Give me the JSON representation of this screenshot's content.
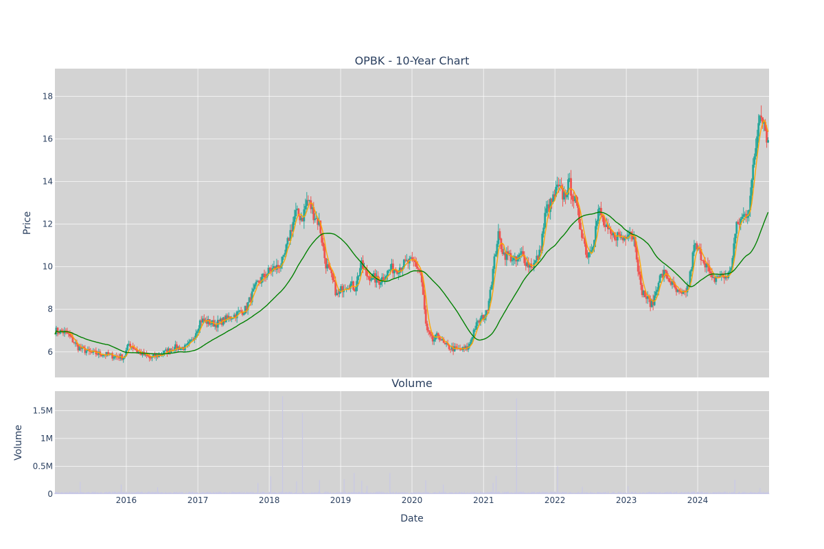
{
  "chart_data": [
    {
      "type": "candlestick",
      "title": "OPBK - 10-Year Chart",
      "xlabel": "",
      "ylabel": "Price",
      "x_range": [
        "2015-01-01",
        "2024-12-31"
      ],
      "ylim": [
        4.8,
        19.3
      ],
      "y_ticks": [
        6,
        8,
        10,
        12,
        14,
        16,
        18
      ],
      "x_tick_labels": [
        "2016",
        "2017",
        "2018",
        "2019",
        "2020",
        "2021",
        "2022",
        "2023",
        "2024"
      ],
      "grid": true,
      "background": "#d3d3d3",
      "increasing_color": "#26a69a",
      "decreasing_color": "#ef5350",
      "close_approx": {
        "dates": [
          "2015-01-01",
          "2015-03-01",
          "2015-05-01",
          "2015-07-01",
          "2015-09-01",
          "2015-11-01",
          "2015-12-20",
          "2016-01-15",
          "2016-03-01",
          "2016-05-01",
          "2016-07-01",
          "2016-09-01",
          "2016-11-01",
          "2016-12-01",
          "2017-01-15",
          "2017-04-01",
          "2017-07-01",
          "2017-09-01",
          "2017-11-01",
          "2018-01-01",
          "2018-02-15",
          "2018-03-15",
          "2018-04-15",
          "2018-05-15",
          "2018-06-20",
          "2018-07-15",
          "2018-08-15",
          "2018-09-15",
          "2018-10-15",
          "2018-11-15",
          "2018-12-15",
          "2019-01-15",
          "2019-02-15",
          "2019-03-15",
          "2019-04-15",
          "2019-05-15",
          "2019-06-15",
          "2019-07-15",
          "2019-08-15",
          "2019-09-15",
          "2019-10-15",
          "2019-11-15",
          "2019-12-15",
          "2020-01-15",
          "2020-02-15",
          "2020-03-15",
          "2020-04-15",
          "2020-05-15",
          "2020-06-15",
          "2020-07-15",
          "2020-08-15",
          "2020-09-15",
          "2020-10-15",
          "2020-11-15",
          "2020-12-15",
          "2021-01-15",
          "2021-02-15",
          "2021-03-15",
          "2021-04-15",
          "2021-05-15",
          "2021-06-15",
          "2021-07-15",
          "2021-08-15",
          "2021-09-15",
          "2021-10-15",
          "2021-11-15",
          "2021-12-15",
          "2022-01-15",
          "2022-02-15",
          "2022-03-15",
          "2022-04-15",
          "2022-05-15",
          "2022-06-15",
          "2022-07-15",
          "2022-08-15",
          "2022-09-15",
          "2022-10-15",
          "2022-11-15",
          "2022-12-15",
          "2023-01-15",
          "2023-02-15",
          "2023-03-15",
          "2023-04-15",
          "2023-05-15",
          "2023-06-15",
          "2023-07-15",
          "2023-08-15",
          "2023-09-15",
          "2023-10-15",
          "2023-11-15",
          "2023-12-15",
          "2024-01-15",
          "2024-02-15",
          "2024-03-15",
          "2024-04-15",
          "2024-05-15",
          "2024-06-15",
          "2024-07-15",
          "2024-08-15",
          "2024-09-15",
          "2024-10-15",
          "2024-11-15",
          "2024-12-01",
          "2024-12-31"
        ],
        "values": [
          7.0,
          6.9,
          6.2,
          5.95,
          5.9,
          5.8,
          5.75,
          6.4,
          6.0,
          5.7,
          5.9,
          6.2,
          6.2,
          6.5,
          7.5,
          7.3,
          7.7,
          8.0,
          9.2,
          9.8,
          10.0,
          10.3,
          11.5,
          12.5,
          12.3,
          13.2,
          12.5,
          12.0,
          10.2,
          9.5,
          8.6,
          9.1,
          9.2,
          9.0,
          10.1,
          9.6,
          9.5,
          9.3,
          9.6,
          9.9,
          9.9,
          10.1,
          10.2,
          10.2,
          9.7,
          7.0,
          6.5,
          6.8,
          6.3,
          6.2,
          6.1,
          6.1,
          6.2,
          7.1,
          7.5,
          7.8,
          9.6,
          11.5,
          10.6,
          10.5,
          10.2,
          10.6,
          10.1,
          10.1,
          10.6,
          12.6,
          13.0,
          13.7,
          13.3,
          13.9,
          13.0,
          11.8,
          10.5,
          11.2,
          12.7,
          11.8,
          11.4,
          11.5,
          11.3,
          11.8,
          11.2,
          9.0,
          8.5,
          8.2,
          9.4,
          9.7,
          9.3,
          8.8,
          8.6,
          9.1,
          11.0,
          10.6,
          10.1,
          9.3,
          9.6,
          9.5,
          9.7,
          11.8,
          12.3,
          12.6,
          14.9,
          17.5,
          17.0,
          15.6
        ]
      },
      "series": [
        {
          "name": "",
          "color": "#ffa500"
        },
        {
          "name": "",
          "color": "#008000"
        }
      ]
    },
    {
      "type": "bar",
      "title": "Volume",
      "xlabel": "Date",
      "ylabel": "Volume",
      "ylim": [
        0,
        1850000
      ],
      "y_ticks": [
        0,
        500000,
        1000000,
        1500000
      ],
      "y_tick_labels": [
        "0",
        "0.5M",
        "1M",
        "1.5M"
      ],
      "x_tick_labels": [
        "2016",
        "2017",
        "2018",
        "2019",
        "2020",
        "2021",
        "2022",
        "2023",
        "2024"
      ],
      "grid": true,
      "background": "#d3d3d3",
      "bar_color": "#c8c8e6",
      "spikes": {
        "dates": [
          "2015-05-10",
          "2015-12-05",
          "2016-06-10",
          "2017-11-05",
          "2018-01-10",
          "2018-03-10",
          "2018-05-20",
          "2018-06-20",
          "2018-09-15",
          "2019-01-20",
          "2019-03-10",
          "2019-04-20",
          "2019-05-15",
          "2019-09-10",
          "2020-03-10",
          "2020-06-10",
          "2021-02-20",
          "2021-03-05",
          "2021-06-20",
          "2022-01-15",
          "2022-05-20",
          "2023-01-10",
          "2024-07-10",
          "2024-11-15"
        ],
        "values": [
          220000,
          170000,
          120000,
          200000,
          320000,
          1760000,
          230000,
          1460000,
          250000,
          270000,
          380000,
          240000,
          150000,
          380000,
          250000,
          170000,
          200000,
          330000,
          1720000,
          500000,
          130000,
          140000,
          260000,
          110000
        ]
      }
    }
  ]
}
